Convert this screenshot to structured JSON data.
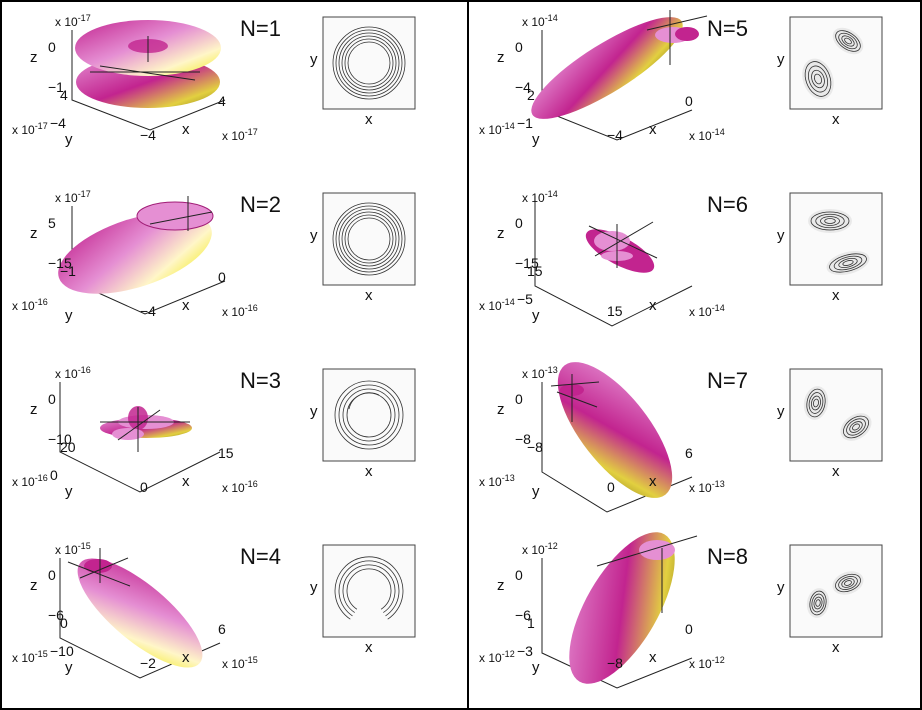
{
  "figure": {
    "panels": [
      {
        "id": 1,
        "title": "N=1",
        "surface_scale": "x 10",
        "surface_exp": "-17",
        "axis_z": "z",
        "axis_y": "y",
        "axis_x": "x",
        "z_ticks": [
          "0",
          "−1"
        ],
        "y_ticks": [
          "4",
          "−4"
        ],
        "x_ticks": [
          "−4",
          "4"
        ],
        "y_scale": "x 10",
        "y_exp": "-17",
        "x_scale": "x 10",
        "x_exp": "-17",
        "contour": {
          "x_label": "x",
          "y_label": "y",
          "pattern": "ring"
        }
      },
      {
        "id": 2,
        "title": "N=2",
        "surface_scale": "x 10",
        "surface_exp": "-17",
        "axis_z": "z",
        "axis_y": "y",
        "axis_x": "x",
        "z_ticks": [
          "5",
          "−15"
        ],
        "y_ticks": [
          "−1"
        ],
        "x_ticks": [
          "−4",
          "0"
        ],
        "y_scale": "x 10",
        "y_exp": "-16",
        "x_scale": "x 10",
        "x_exp": "-16",
        "contour": {
          "x_label": "x",
          "y_label": "y",
          "pattern": "ring"
        }
      },
      {
        "id": 3,
        "title": "N=3",
        "surface_scale": "x 10",
        "surface_exp": "-16",
        "axis_z": "z",
        "axis_y": "y",
        "axis_x": "x",
        "z_ticks": [
          "0",
          "−10"
        ],
        "y_ticks": [
          "20",
          "0"
        ],
        "x_ticks": [
          "0",
          "15"
        ],
        "y_scale": "x 10",
        "y_exp": "-16",
        "x_scale": "x 10",
        "x_exp": "-16",
        "contour": {
          "x_label": "x",
          "y_label": "y",
          "pattern": "ring-open"
        }
      },
      {
        "id": 4,
        "title": "N=4",
        "surface_scale": "x 10",
        "surface_exp": "-15",
        "axis_z": "z",
        "axis_y": "y",
        "axis_x": "x",
        "z_ticks": [
          "0",
          "−6"
        ],
        "y_ticks": [
          "0",
          "−10"
        ],
        "x_ticks": [
          "−2",
          "6"
        ],
        "y_scale": "x 10",
        "y_exp": "-15",
        "x_scale": "x 10",
        "x_exp": "-15",
        "contour": {
          "x_label": "x",
          "y_label": "y",
          "pattern": "horseshoe"
        }
      },
      {
        "id": 5,
        "title": "N=5",
        "surface_scale": "x 10",
        "surface_exp": "-14",
        "axis_z": "z",
        "axis_y": "y",
        "axis_x": "x",
        "z_ticks": [
          "0",
          "−4"
        ],
        "y_ticks": [
          "2",
          "−1"
        ],
        "x_ticks": [
          "−4",
          "0"
        ],
        "y_scale": "x 10",
        "y_exp": "-14",
        "x_scale": "x 10",
        "x_exp": "-14",
        "contour": {
          "x_label": "x",
          "y_label": "y",
          "pattern": "two-lobes-diag"
        }
      },
      {
        "id": 6,
        "title": "N=6",
        "surface_scale": "x 10",
        "surface_exp": "-14",
        "axis_z": "z",
        "axis_y": "y",
        "axis_x": "x",
        "z_ticks": [
          "0",
          "−15"
        ],
        "y_ticks": [
          "15",
          "−5"
        ],
        "x_ticks": [
          "15"
        ],
        "y_scale": "x 10",
        "y_exp": "-14",
        "x_scale": "x 10",
        "x_exp": "-14",
        "contour": {
          "x_label": "x",
          "y_label": "y",
          "pattern": "two-lobes-vert"
        }
      },
      {
        "id": 7,
        "title": "N=7",
        "surface_scale": "x 10",
        "surface_exp": "-13",
        "axis_z": "z",
        "axis_y": "y",
        "axis_x": "x",
        "z_ticks": [
          "0",
          "−8"
        ],
        "y_ticks": [
          "−8"
        ],
        "x_ticks": [
          "0",
          "6"
        ],
        "y_scale": "x 10",
        "y_exp": "-13",
        "x_scale": "x 10",
        "x_exp": "-13",
        "contour": {
          "x_label": "x",
          "y_label": "y",
          "pattern": "two-lobes-sep"
        }
      },
      {
        "id": 8,
        "title": "N=8",
        "surface_scale": "x 10",
        "surface_exp": "-12",
        "axis_z": "z",
        "axis_y": "y",
        "axis_x": "x",
        "z_ticks": [
          "0",
          "−6"
        ],
        "y_ticks": [
          "1",
          "−3"
        ],
        "x_ticks": [
          "−8",
          "0"
        ],
        "y_scale": "x 10",
        "y_exp": "-12",
        "x_scale": "x 10",
        "x_exp": "-12",
        "contour": {
          "x_label": "x",
          "y_label": "y",
          "pattern": "two-lobes-close"
        }
      }
    ],
    "colors": {
      "magenta": "#c2248f",
      "pink": "#e58fd3",
      "yellow": "#f2ea1a",
      "olive": "#8c7a18",
      "frame": "#000000",
      "contour_line": "#333333"
    }
  }
}
